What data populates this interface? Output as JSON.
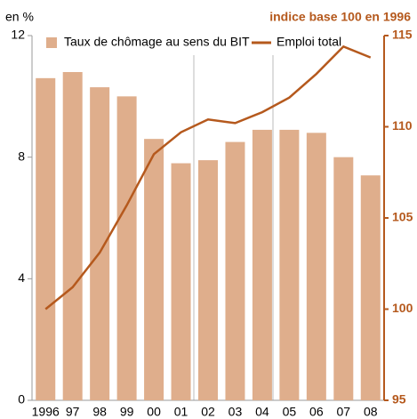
{
  "chart_data": {
    "type": "bar_line",
    "y_label": "en %",
    "y2_label": "indice base 100 en 1996",
    "categories": [
      "1996",
      "97",
      "98",
      "99",
      "00",
      "01",
      "02",
      "03",
      "04",
      "05",
      "06",
      "07",
      "08"
    ],
    "series": [
      {
        "name": "Taux de chômage au sens du BIT",
        "type": "bar",
        "color": "#dfae8c",
        "values": [
          10.6,
          10.8,
          10.3,
          10.0,
          8.6,
          7.8,
          7.9,
          8.5,
          8.9,
          8.9,
          8.8,
          8.0,
          7.4
        ]
      },
      {
        "name": "Emploi total",
        "type": "line",
        "axis": "y2",
        "color": "#b5591d",
        "values": [
          100.0,
          101.2,
          103.1,
          105.7,
          108.5,
          109.7,
          110.4,
          110.2,
          110.8,
          111.6,
          112.9,
          114.4,
          113.8
        ]
      }
    ],
    "ylim": [
      0,
      12
    ],
    "yticks": [
      0,
      4,
      8,
      12
    ],
    "y2lim": [
      95,
      115
    ],
    "y2ticks": [
      95,
      100,
      105,
      110,
      115
    ]
  }
}
